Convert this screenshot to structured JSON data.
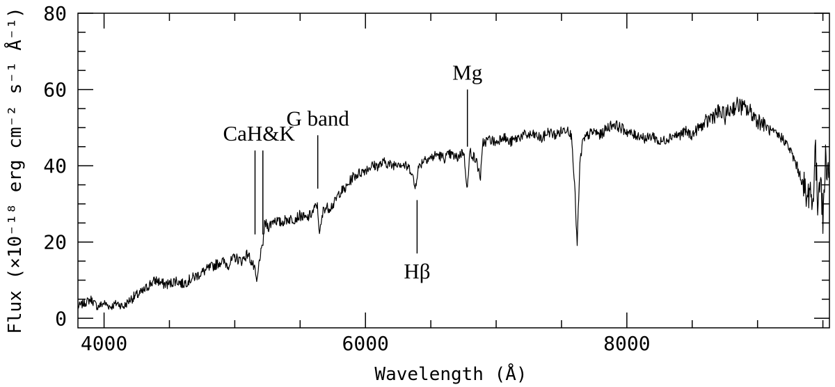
{
  "chart_data": {
    "type": "line",
    "xlabel": "Wavelength (Å)",
    "ylabel": "Flux (×10⁻¹⁸ erg cm⁻² s⁻¹ Å⁻¹)",
    "xlim": [
      3800,
      9550
    ],
    "ylim": [
      -2.5,
      80
    ],
    "x_ticks": [
      4000,
      6000,
      8000
    ],
    "x_tick_labels": [
      "4000",
      "6000",
      "8000"
    ],
    "y_ticks": [
      0,
      20,
      40,
      60,
      80
    ],
    "y_tick_labels": [
      "0",
      "20",
      "40",
      "60",
      "80"
    ],
    "grid": false,
    "series": [
      {
        "x": [
          3800,
          3850,
          3900,
          3950,
          4000,
          4050,
          4100,
          4150,
          4200,
          4250,
          4300,
          4350,
          4400,
          4450,
          4500,
          4550,
          4600,
          4650,
          4700,
          4750,
          4800,
          4850,
          4900,
          4950,
          5000,
          5050,
          5100,
          5150,
          5170,
          5190,
          5210,
          5230,
          5260,
          5300,
          5350,
          5400,
          5450,
          5500,
          5550,
          5600,
          5630,
          5650,
          5680,
          5720,
          5760,
          5800,
          5850,
          5900,
          5950,
          6000,
          6050,
          6100,
          6150,
          6200,
          6250,
          6300,
          6350,
          6380,
          6400,
          6450,
          6500,
          6550,
          6600,
          6650,
          6700,
          6750,
          6780,
          6800,
          6850,
          6880,
          6900,
          6950,
          7000,
          7050,
          7100,
          7150,
          7200,
          7250,
          7300,
          7350,
          7400,
          7450,
          7500,
          7550,
          7580,
          7600,
          7620,
          7640,
          7660,
          7700,
          7750,
          7800,
          7850,
          7900,
          7950,
          8000,
          8050,
          8100,
          8150,
          8200,
          8250,
          8300,
          8350,
          8400,
          8450,
          8500,
          8550,
          8600,
          8650,
          8700,
          8750,
          8800,
          8850,
          8900,
          8950,
          9000,
          9050,
          9100,
          9150,
          9200,
          9250,
          9300,
          9350,
          9380,
          9400,
          9420,
          9440,
          9460,
          9480,
          9500,
          9520,
          9550
        ],
        "y": [
          3,
          4,
          5,
          3,
          4,
          3,
          4,
          3,
          5,
          6,
          7,
          9,
          10,
          9,
          9,
          10,
          9,
          10,
          11,
          12,
          13,
          14,
          15,
          14,
          16,
          15,
          17,
          13,
          9,
          16,
          18,
          25,
          24,
          26,
          25,
          26,
          26,
          27,
          26,
          28,
          30,
          22,
          29,
          29,
          30,
          33,
          34,
          37,
          38,
          39,
          40,
          40,
          41,
          40,
          41,
          40,
          39,
          34,
          39,
          42,
          42,
          43,
          42,
          43,
          42,
          44,
          34,
          44,
          41,
          37,
          46,
          47,
          46,
          48,
          46,
          47,
          48,
          48,
          48,
          47,
          49,
          48,
          49,
          50,
          47,
          35,
          19,
          40,
          46,
          48,
          49,
          48,
          50,
          51,
          50,
          49,
          48,
          48,
          47,
          48,
          46,
          47,
          48,
          48,
          49,
          48,
          50,
          51,
          53,
          54,
          53,
          55,
          56,
          55,
          54,
          52,
          51,
          49,
          48,
          47,
          44,
          40,
          35,
          30,
          36,
          28,
          45,
          30,
          40,
          25,
          42,
          38
        ]
      }
    ],
    "annotations": [
      {
        "label": "CaH&K",
        "lines_x": [
          5155,
          5215
        ],
        "line_top": 44,
        "line_bottom": 22
      },
      {
        "label": "G band",
        "lines_x": [
          5635
        ],
        "line_top": 48,
        "line_bottom": 34
      },
      {
        "label": "Hβ",
        "lines_x": [
          6395
        ],
        "line_top": 31,
        "line_bottom": 17
      },
      {
        "label": "Mg",
        "lines_x": [
          6780
        ],
        "line_top": 60,
        "line_bottom": 45
      }
    ]
  }
}
